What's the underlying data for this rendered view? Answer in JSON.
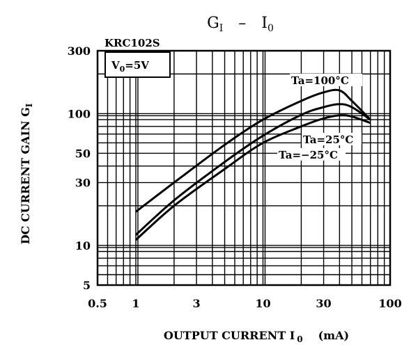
{
  "chart_data": {
    "type": "line",
    "title": "G I  –  I 0",
    "title_parts": {
      "main": "G",
      "sub": "I",
      "dash": "–",
      "main2": "I",
      "sub2": "0"
    },
    "xlabel": "OUTPUT CURRENT I0  (mA)",
    "xlabel_parts": {
      "text": "OUTPUT CURRENT I",
      "sub": "0",
      "unit": "(mA)"
    },
    "ylabel": "DC CURRENT GAIN GI",
    "ylabel_parts": {
      "text": "DC CURRENT GAIN G",
      "sub": "I"
    },
    "x_scale": "log",
    "y_scale": "log",
    "xlim": [
      0.5,
      100
    ],
    "ylim": [
      5,
      300
    ],
    "grid": true,
    "x_tick_labels": [
      "0.5",
      "1",
      "3",
      "10",
      "30",
      "100"
    ],
    "x_tick_values": [
      0.5,
      1,
      3,
      10,
      30,
      100
    ],
    "y_tick_labels": [
      "5",
      "10",
      "30",
      "50",
      "100",
      "300"
    ],
    "y_tick_values": [
      5,
      10,
      30,
      50,
      100,
      300
    ],
    "annotations": {
      "part": "KRC102S",
      "condition_parts": {
        "main": "V",
        "sub": "0",
        "rest": "=5V"
      }
    },
    "series": [
      {
        "name": "Ta=100°C",
        "x": [
          1,
          2,
          5,
          10,
          20,
          30,
          40,
          50,
          70
        ],
        "y": [
          18,
          30,
          58,
          90,
          125,
          145,
          150,
          125,
          90
        ]
      },
      {
        "name": "Ta=25°C",
        "x": [
          1,
          2,
          5,
          10,
          20,
          30,
          40,
          50,
          70
        ],
        "y": [
          12,
          22,
          43,
          68,
          98,
          112,
          118,
          112,
          90
        ]
      },
      {
        "name": "Ta=−25°C",
        "x": [
          1,
          2,
          5,
          10,
          20,
          30,
          40,
          50,
          70
        ],
        "y": [
          11,
          20,
          38,
          60,
          80,
          92,
          97,
          95,
          85
        ]
      }
    ]
  }
}
